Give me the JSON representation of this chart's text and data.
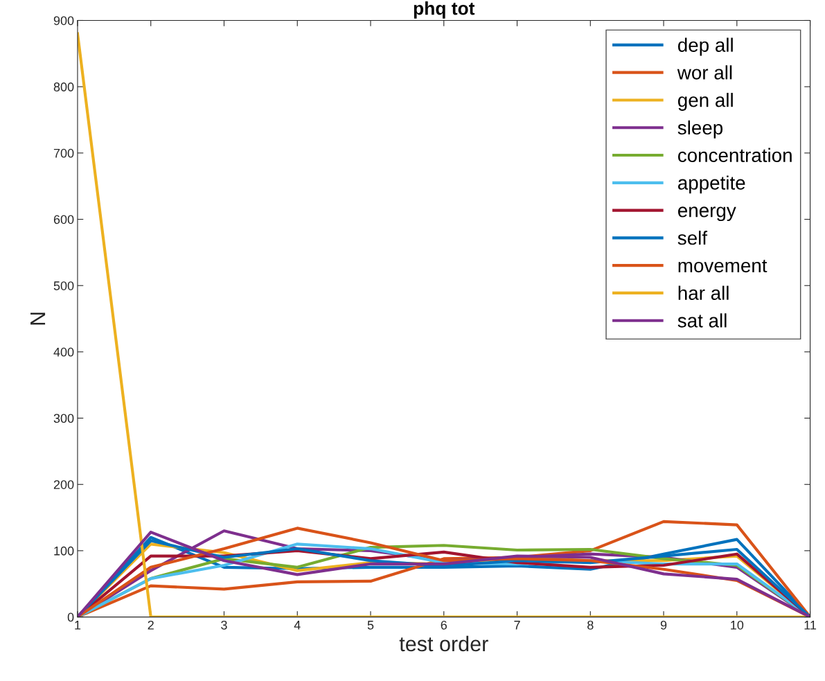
{
  "chart_data": {
    "type": "line",
    "title": "phq tot",
    "xlabel": "test order",
    "ylabel": "N",
    "x": [
      1,
      2,
      3,
      4,
      5,
      6,
      7,
      8,
      9,
      10,
      11
    ],
    "xlim": [
      1,
      11
    ],
    "xticks": [
      1,
      2,
      3,
      4,
      5,
      6,
      7,
      8,
      9,
      10,
      11
    ],
    "ylim": [
      0,
      900
    ],
    "yticks": [
      0,
      100,
      200,
      300,
      400,
      500,
      600,
      700,
      800,
      900
    ],
    "grid": false,
    "legend": "top right",
    "marker": "none",
    "line_style": "solid",
    "series": [
      {
        "name": "dep all",
        "color": "#0072bd",
        "values": [
          0,
          120,
          75,
          73,
          75,
          75,
          77,
          72,
          95,
          117,
          0
        ]
      },
      {
        "name": "wor all",
        "color": "#d95319",
        "values": [
          0,
          47,
          42,
          53,
          54,
          88,
          90,
          100,
          144,
          139,
          0
        ]
      },
      {
        "name": "gen all",
        "color": "#edb120",
        "values": [
          0,
          110,
          97,
          70,
          82,
          80,
          90,
          85,
          85,
          92,
          0
        ]
      },
      {
        "name": "sleep",
        "color": "#7e2f8e",
        "values": [
          0,
          70,
          130,
          103,
          100,
          85,
          90,
          95,
          90,
          75,
          0
        ]
      },
      {
        "name": "concentration",
        "color": "#77ac30",
        "values": [
          0,
          58,
          88,
          75,
          105,
          108,
          101,
          102,
          88,
          78,
          0
        ]
      },
      {
        "name": "appetite",
        "color": "#4dbeee",
        "values": [
          0,
          58,
          78,
          110,
          103,
          82,
          80,
          85,
          80,
          80,
          0
        ]
      },
      {
        "name": "energy",
        "color": "#a2142f",
        "values": [
          0,
          92,
          92,
          100,
          88,
          98,
          82,
          75,
          78,
          95,
          0
        ]
      },
      {
        "name": "self",
        "color": "#0072bd",
        "values": [
          0,
          115,
          90,
          103,
          85,
          77,
          85,
          82,
          92,
          102,
          0
        ]
      },
      {
        "name": "movement",
        "color": "#d95319",
        "values": [
          0,
          75,
          103,
          134,
          112,
          85,
          88,
          85,
          72,
          55,
          0
        ]
      },
      {
        "name": "har all",
        "color": "#edb120",
        "values": [
          880,
          0,
          0,
          0,
          0,
          0,
          0,
          0,
          0,
          0,
          0
        ]
      },
      {
        "name": "sat all",
        "color": "#7e2f8e",
        "values": [
          0,
          128,
          85,
          64,
          80,
          80,
          92,
          90,
          65,
          57,
          0
        ]
      }
    ]
  }
}
